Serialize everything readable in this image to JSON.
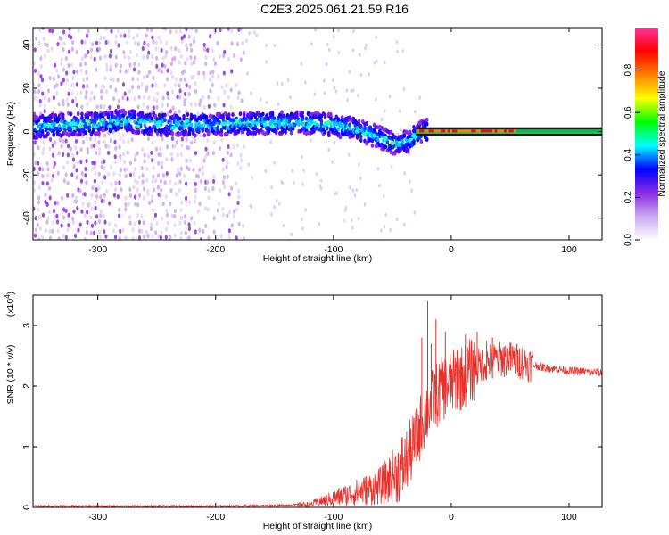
{
  "title": "C2E3.2025.061.21.59.R16",
  "chart_data": [
    {
      "type": "heatmap",
      "panel": "spectrogram",
      "xlabel": "Height of straight line (km)",
      "ylabel": "Frequency (Hz)",
      "xlim": [
        -355,
        128
      ],
      "ylim": [
        -50,
        48
      ],
      "x_ticks": [
        -300,
        -200,
        -100,
        0,
        100
      ],
      "y_ticks": [
        -40,
        -20,
        0,
        20,
        40
      ],
      "colorbar": {
        "label": "Normalized spectral amplitude",
        "range": [
          0,
          1
        ],
        "ticks": [
          "0.0",
          "0.2",
          "0.4",
          "0.6",
          "0.8"
        ],
        "colors": [
          "#ffffff",
          "#c8a8f0",
          "#8a2be2",
          "#0000ff",
          "#00ffff",
          "#00ff00",
          "#ffff00",
          "#ff8000",
          "#ff0000",
          "#ff3399"
        ]
      },
      "ridge": {
        "x": [
          -355,
          -330,
          -300,
          -280,
          -260,
          -240,
          -220,
          -200,
          -180,
          -160,
          -140,
          -120,
          -100,
          -80,
          -60,
          -45,
          -35,
          -25,
          -15,
          -5,
          0,
          10,
          20,
          40,
          60,
          90,
          128
        ],
        "y": [
          2,
          3,
          4,
          5,
          4,
          3,
          3,
          3,
          4,
          4,
          4,
          4,
          3,
          1,
          -3,
          -6,
          -4,
          0,
          1,
          2,
          2,
          1,
          1,
          0,
          0,
          0,
          0
        ]
      }
    },
    {
      "type": "line",
      "panel": "snr",
      "xlabel": "Height of straight line (km)",
      "ylabel": "SNR (10 * v/v)",
      "yscale_label": "(x10",
      "yscale_exp": "4",
      "xlim": [
        -355,
        128
      ],
      "ylim": [
        0,
        3.5
      ],
      "x_ticks": [
        -300,
        -200,
        -100,
        0,
        100
      ],
      "y_ticks": [
        0,
        1,
        2,
        3
      ],
      "series": [
        {
          "color": "#e8302a",
          "x": [
            -355,
            -300,
            -250,
            -200,
            -150,
            -120,
            -100,
            -80,
            -60,
            -50,
            -40,
            -30,
            -25,
            -20,
            -18,
            -15,
            -10,
            -5,
            0,
            10,
            20,
            30,
            40,
            50,
            60,
            70,
            80,
            90,
            100,
            110,
            128
          ],
          "y": [
            0.02,
            0.02,
            0.02,
            0.02,
            0.03,
            0.05,
            0.15,
            0.25,
            0.35,
            0.5,
            0.7,
            1.1,
            1.4,
            1.6,
            1.7,
            1.8,
            1.9,
            2.0,
            2.05,
            2.15,
            2.3,
            2.4,
            2.45,
            2.45,
            2.4,
            2.35,
            2.3,
            2.28,
            2.25,
            2.24,
            2.22
          ]
        }
      ],
      "spikes": [
        {
          "x": -25,
          "y": 2.8
        },
        {
          "x": -20,
          "y": 3.4
        },
        {
          "x": -17,
          "y": 2.7
        },
        {
          "x": -13,
          "y": 3.1
        },
        {
          "x": -5,
          "y": 2.9
        },
        {
          "x": 5,
          "y": 2.6
        },
        {
          "x": 12,
          "y": 2.85
        },
        {
          "x": 22,
          "y": 2.9
        },
        {
          "x": 30,
          "y": 2.75
        },
        {
          "x": 35,
          "y": 2.8
        },
        {
          "x": 45,
          "y": 2.65
        }
      ]
    }
  ]
}
